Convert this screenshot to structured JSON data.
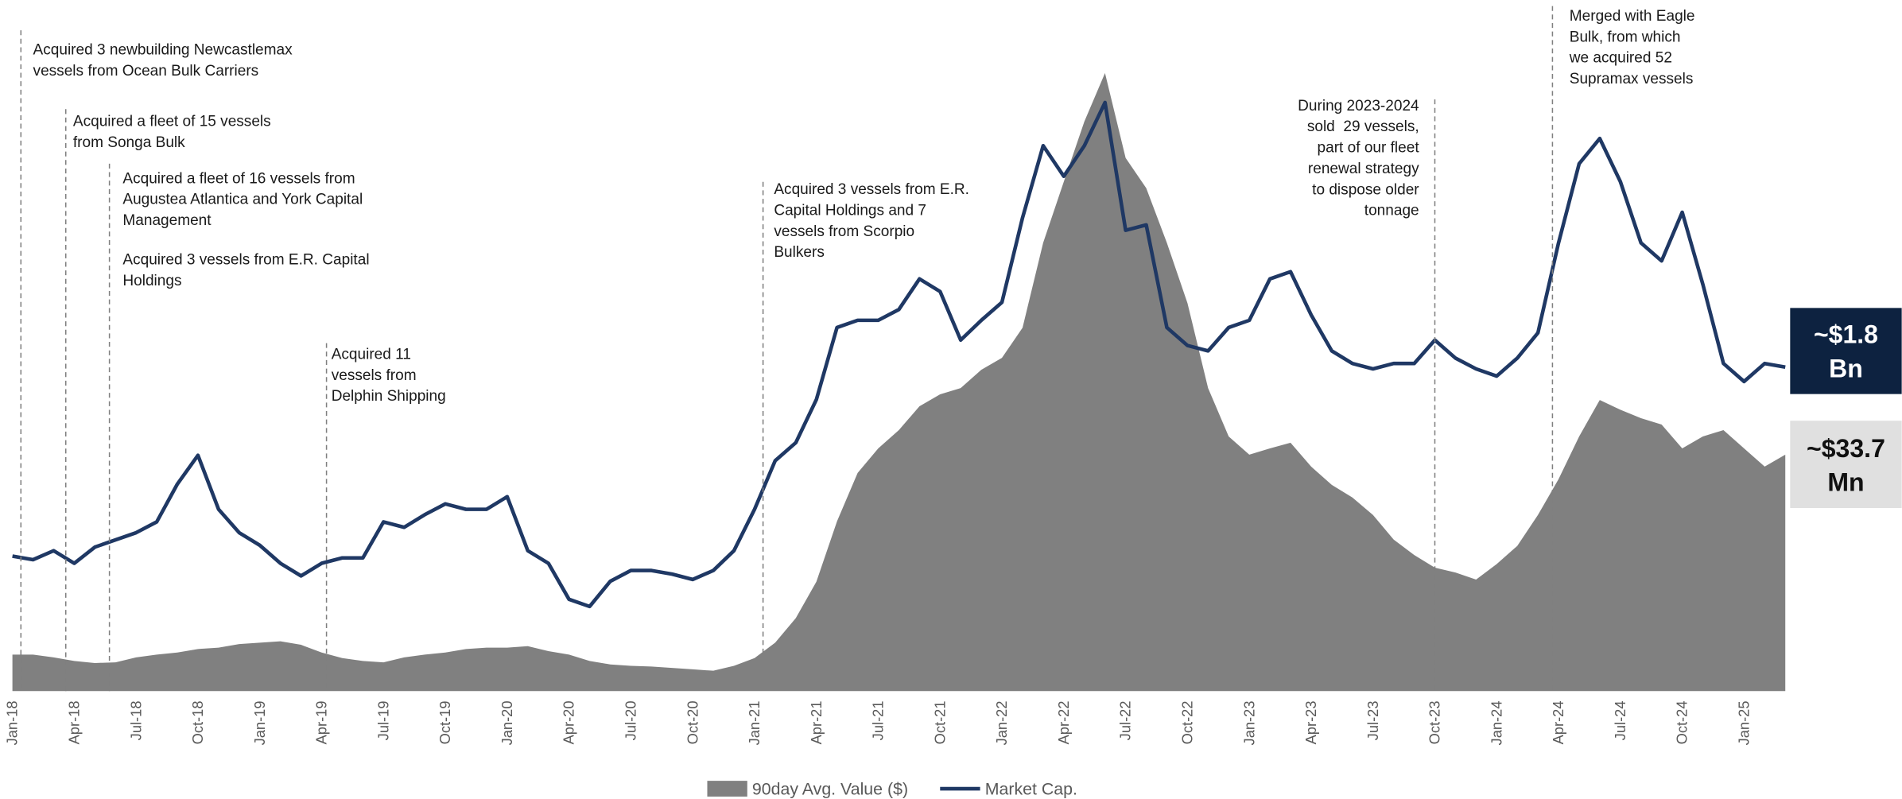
{
  "chart_data": {
    "type": "area-line",
    "categories": [
      "Jan-18",
      null,
      null,
      "Apr-18",
      null,
      null,
      "Jul-18",
      null,
      null,
      "Oct-18",
      null,
      null,
      "Jan-19",
      null,
      null,
      "Apr-19",
      null,
      null,
      "Jul-19",
      null,
      null,
      "Oct-19",
      null,
      null,
      "Jan-20",
      null,
      null,
      "Apr-20",
      null,
      null,
      "Jul-20",
      null,
      null,
      "Oct-20",
      null,
      null,
      "Jan-21",
      null,
      null,
      "Apr-21",
      null,
      null,
      "Jul-21",
      null,
      null,
      "Oct-21",
      null,
      null,
      "Jan-22",
      null,
      null,
      "Apr-22",
      null,
      null,
      "Jul-22",
      null,
      null,
      "Oct-22",
      null,
      null,
      "Jan-23",
      null,
      null,
      "Apr-23",
      null,
      null,
      "Jul-23",
      null,
      null,
      "Oct-23",
      null,
      null,
      "Jan-24",
      null,
      null,
      "Apr-24",
      null,
      null,
      "Jul-24",
      null,
      null,
      "Oct-24",
      null,
      null,
      "Jan-25",
      null,
      null
    ],
    "series": [
      {
        "name": "90day Avg. Value ($)",
        "color": "#808080",
        "kind": "area",
        "values": [
          5.2,
          5.2,
          4.8,
          4.3,
          4.0,
          4.1,
          4.8,
          5.2,
          5.5,
          6.0,
          6.2,
          6.7,
          6.9,
          7.1,
          6.6,
          5.5,
          4.7,
          4.3,
          4.1,
          4.8,
          5.2,
          5.5,
          6.0,
          6.2,
          6.2,
          6.4,
          5.7,
          5.2,
          4.3,
          3.8,
          3.6,
          3.5,
          3.3,
          3.1,
          2.9,
          3.6,
          4.7,
          6.9,
          10.4,
          15.6,
          24.2,
          31.1,
          34.6,
          37.2,
          40.6,
          42.3,
          43.2,
          45.8,
          47.5,
          51.8,
          63.9,
          72.6,
          81.2,
          88.1,
          76.0,
          71.7,
          63.9,
          55.3,
          43.2,
          36.3,
          33.7,
          34.6,
          35.4,
          32.0,
          29.4,
          27.6,
          25.1,
          21.6,
          19.4,
          17.6,
          16.9,
          15.9,
          18.1,
          20.7,
          25.1,
          30.2,
          36.3,
          41.5,
          40.1,
          38.9,
          38.0,
          34.6,
          36.3,
          37.2,
          34.6,
          32.0,
          33.7
        ]
      },
      {
        "name": "Market Cap.",
        "color": "#1f3864",
        "kind": "line",
        "axis": "y2",
        "values": [
          0.75,
          0.73,
          0.78,
          0.71,
          0.8,
          0.84,
          0.88,
          0.94,
          1.15,
          1.31,
          1.01,
          0.88,
          0.81,
          0.71,
          0.64,
          0.71,
          0.74,
          0.74,
          0.94,
          0.91,
          0.98,
          1.04,
          1.01,
          1.01,
          1.08,
          0.78,
          0.71,
          0.51,
          0.47,
          0.61,
          0.67,
          0.67,
          0.65,
          0.62,
          0.67,
          0.78,
          1.01,
          1.28,
          1.38,
          1.62,
          2.02,
          2.06,
          2.06,
          2.12,
          2.29,
          2.22,
          1.95,
          2.06,
          2.16,
          2.63,
          3.03,
          2.86,
          3.03,
          3.27,
          2.56,
          2.59,
          2.02,
          1.92,
          1.89,
          2.02,
          2.06,
          2.29,
          2.33,
          2.09,
          1.89,
          1.82,
          1.79,
          1.82,
          1.82,
          1.95,
          1.85,
          1.79,
          1.75,
          1.85,
          1.99,
          2.49,
          2.93,
          3.07,
          2.83,
          2.49,
          2.39,
          2.66,
          2.26,
          1.82,
          1.72,
          1.82,
          1.8
        ]
      }
    ],
    "ylim": [
      0,
      91.6
    ],
    "y2lim": [
      0,
      3.57
    ],
    "market_cap_label": [
      "~$1.8",
      "Bn"
    ],
    "avg_value_label": [
      "~$33.7",
      "Mn"
    ],
    "annotations": [
      [
        "Acquired 3 newbuilding Newcastlemax",
        "vessels from Ocean Bulk Carriers"
      ],
      [
        "Acquired a fleet of 15 vessels",
        "from Songa Bulk"
      ],
      [
        "Acquired a fleet of 16 vessels from",
        "Augustea Atlantica and York Capital",
        "Management"
      ],
      [
        "Acquired 3 vessels from E.R. Capital",
        "Holdings"
      ],
      [
        "Acquired 11",
        "vessels from",
        "Delphin Shipping"
      ],
      [
        "Acquired 3 vessels from E.R.",
        "Capital Holdings and 7",
        "vessels from Scorpio",
        "Bulkers"
      ],
      [
        "During 2023-2024",
        "sold  29 vessels,",
        "part of our fleet",
        "renewal strategy",
        "to dispose older",
        "tonnage"
      ],
      [
        "Merged with Eagle",
        "Bulk, from which",
        "we acquired 52",
        "Supramax vessels"
      ]
    ]
  }
}
